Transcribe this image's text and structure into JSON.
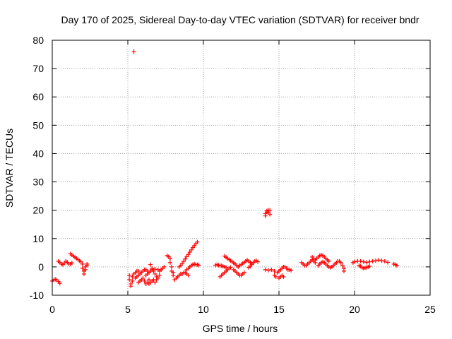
{
  "chart_data": {
    "type": "scatter",
    "title": "Day 170 of 2025, Sidereal Day-to-day VTEC variation (SDTVAR) for receiver bndr",
    "xlabel": "GPS time / hours",
    "ylabel": "SDTVAR / TECUs",
    "xlim": [
      0,
      25
    ],
    "ylim": [
      -10,
      80
    ],
    "xticks": [
      0,
      5,
      10,
      15,
      20,
      25
    ],
    "yticks": [
      -10,
      0,
      10,
      20,
      30,
      40,
      50,
      60,
      70,
      80
    ],
    "grid": true,
    "marker": "+",
    "series_color": "#ff0000",
    "series": [
      {
        "name": "SDTVAR",
        "points": [
          [
            0.0,
            -5.0
          ],
          [
            0.1,
            -4.6
          ],
          [
            0.2,
            -4.4
          ],
          [
            0.3,
            -4.6
          ],
          [
            0.4,
            -5.2
          ],
          [
            0.5,
            -5.8
          ],
          [
            0.4,
            2.0
          ],
          [
            0.5,
            1.6
          ],
          [
            0.6,
            1.0
          ],
          [
            0.7,
            0.8
          ],
          [
            0.8,
            1.4
          ],
          [
            0.9,
            2.0
          ],
          [
            1.0,
            1.6
          ],
          [
            1.1,
            1.0
          ],
          [
            1.2,
            1.0
          ],
          [
            1.3,
            1.4
          ],
          [
            1.2,
            4.6
          ],
          [
            1.3,
            4.2
          ],
          [
            1.4,
            3.8
          ],
          [
            1.5,
            3.4
          ],
          [
            1.6,
            3.0
          ],
          [
            1.7,
            2.6
          ],
          [
            1.8,
            2.2
          ],
          [
            1.9,
            1.8
          ],
          [
            2.0,
            1.0
          ],
          [
            2.0,
            -0.5
          ],
          [
            2.1,
            -1.5
          ],
          [
            2.1,
            -2.5
          ],
          [
            2.2,
            -1.0
          ],
          [
            2.2,
            0.0
          ],
          [
            2.3,
            0.5
          ],
          [
            2.3,
            1.0
          ],
          [
            5.4,
            76.0
          ],
          [
            5.1,
            -3.0
          ],
          [
            5.1,
            -4.5
          ],
          [
            5.2,
            -6.0
          ],
          [
            5.2,
            -6.8
          ],
          [
            5.3,
            -5.0
          ],
          [
            5.3,
            -3.5
          ],
          [
            5.4,
            -2.5
          ],
          [
            5.5,
            -2.0
          ],
          [
            5.6,
            -1.5
          ],
          [
            5.7,
            -1.5
          ],
          [
            5.5,
            -4.0
          ],
          [
            5.6,
            -3.5
          ],
          [
            5.7,
            -3.0
          ],
          [
            5.8,
            -2.5
          ],
          [
            5.9,
            -2.0
          ],
          [
            6.0,
            -1.5
          ],
          [
            6.1,
            -1.0
          ],
          [
            6.2,
            -1.0
          ],
          [
            6.3,
            -1.5
          ],
          [
            5.7,
            -5.5
          ],
          [
            5.8,
            -5.0
          ],
          [
            5.9,
            -4.5
          ],
          [
            6.0,
            -4.0
          ],
          [
            6.1,
            -5.0
          ],
          [
            6.2,
            -6.0
          ],
          [
            6.3,
            -5.5
          ],
          [
            6.4,
            -4.5
          ],
          [
            6.2,
            -3.0
          ],
          [
            6.3,
            -2.5
          ],
          [
            6.4,
            -2.0
          ],
          [
            6.5,
            -1.5
          ],
          [
            6.6,
            -1.0
          ],
          [
            6.7,
            -1.5
          ],
          [
            6.8,
            -2.5
          ],
          [
            6.9,
            -3.5
          ],
          [
            6.4,
            -6.0
          ],
          [
            6.5,
            -5.5
          ],
          [
            6.6,
            -5.0
          ],
          [
            6.7,
            -4.5
          ],
          [
            6.8,
            -5.5
          ],
          [
            6.9,
            -4.5
          ],
          [
            7.0,
            -4.0
          ],
          [
            7.1,
            -3.0
          ],
          [
            6.5,
            0.8
          ],
          [
            6.6,
            -0.5
          ],
          [
            6.8,
            -0.8
          ],
          [
            7.0,
            -1.0
          ],
          [
            7.1,
            -1.5
          ],
          [
            7.2,
            -1.0
          ],
          [
            7.3,
            -0.5
          ],
          [
            7.4,
            0.0
          ],
          [
            7.6,
            4.0
          ],
          [
            7.7,
            3.6
          ],
          [
            7.8,
            3.0
          ],
          [
            7.8,
            1.5
          ],
          [
            7.9,
            0.0
          ],
          [
            7.9,
            -1.5
          ],
          [
            8.0,
            -2.0
          ],
          [
            8.0,
            -3.0
          ],
          [
            8.1,
            -4.5
          ],
          [
            8.2,
            -4.0
          ],
          [
            8.3,
            -3.5
          ],
          [
            8.4,
            -3.0
          ],
          [
            8.5,
            -2.5
          ],
          [
            8.6,
            -2.5
          ],
          [
            8.7,
            -2.0
          ],
          [
            8.8,
            -2.0
          ],
          [
            8.9,
            -2.5
          ],
          [
            9.0,
            -3.0
          ],
          [
            8.4,
            0.0
          ],
          [
            8.5,
            0.6
          ],
          [
            8.6,
            1.2
          ],
          [
            8.7,
            2.0
          ],
          [
            8.8,
            2.8
          ],
          [
            8.9,
            3.6
          ],
          [
            9.0,
            4.4
          ],
          [
            9.1,
            5.2
          ],
          [
            9.2,
            6.0
          ],
          [
            9.3,
            6.8
          ],
          [
            9.4,
            7.5
          ],
          [
            9.5,
            8.2
          ],
          [
            9.6,
            8.8
          ],
          [
            8.9,
            -1.0
          ],
          [
            9.0,
            -0.5
          ],
          [
            9.1,
            0.0
          ],
          [
            9.2,
            0.5
          ],
          [
            9.3,
            0.8
          ],
          [
            9.4,
            1.0
          ],
          [
            9.5,
            0.8
          ],
          [
            9.6,
            0.8
          ],
          [
            9.7,
            0.6
          ],
          [
            10.8,
            0.6
          ],
          [
            10.9,
            0.8
          ],
          [
            11.0,
            0.6
          ],
          [
            11.1,
            0.4
          ],
          [
            11.2,
            0.4
          ],
          [
            11.3,
            0.2
          ],
          [
            11.4,
            0.0
          ],
          [
            11.5,
            -0.2
          ],
          [
            11.1,
            -3.5
          ],
          [
            11.2,
            -3.0
          ],
          [
            11.3,
            -2.5
          ],
          [
            11.4,
            -2.0
          ],
          [
            11.5,
            -1.5
          ],
          [
            11.6,
            -1.0
          ],
          [
            11.7,
            -0.5
          ],
          [
            11.8,
            -0.2
          ],
          [
            11.4,
            3.8
          ],
          [
            11.5,
            3.4
          ],
          [
            11.6,
            3.0
          ],
          [
            11.7,
            2.6
          ],
          [
            11.8,
            2.2
          ],
          [
            11.9,
            1.8
          ],
          [
            12.0,
            1.4
          ],
          [
            12.1,
            1.0
          ],
          [
            12.2,
            0.5
          ],
          [
            12.3,
            0.0
          ],
          [
            12.0,
            -1.0
          ],
          [
            12.1,
            -1.5
          ],
          [
            12.2,
            -2.0
          ],
          [
            12.3,
            -2.5
          ],
          [
            12.4,
            -3.0
          ],
          [
            12.5,
            -3.0
          ],
          [
            12.6,
            -2.5
          ],
          [
            12.7,
            -2.0
          ],
          [
            12.4,
            0.5
          ],
          [
            12.5,
            0.8
          ],
          [
            12.6,
            1.2
          ],
          [
            12.7,
            1.6
          ],
          [
            12.8,
            2.0
          ],
          [
            12.9,
            2.4
          ],
          [
            13.0,
            2.0
          ],
          [
            13.1,
            1.6
          ],
          [
            13.2,
            1.2
          ],
          [
            13.0,
            -0.2
          ],
          [
            13.1,
            0.2
          ],
          [
            13.2,
            0.8
          ],
          [
            13.3,
            1.5
          ],
          [
            13.4,
            2.0
          ],
          [
            13.5,
            2.2
          ],
          [
            13.6,
            1.8
          ],
          [
            14.1,
            18.0
          ],
          [
            14.1,
            18.8
          ],
          [
            14.2,
            19.4
          ],
          [
            14.2,
            19.8
          ],
          [
            14.3,
            20.0
          ],
          [
            14.3,
            19.2
          ],
          [
            14.4,
            18.5
          ],
          [
            14.4,
            20.0
          ],
          [
            14.1,
            -1.0
          ],
          [
            14.3,
            -1.2
          ],
          [
            14.5,
            -1.0
          ],
          [
            14.7,
            -1.5
          ],
          [
            14.9,
            -2.0
          ],
          [
            15.0,
            -1.5
          ],
          [
            15.1,
            -1.0
          ],
          [
            15.2,
            -0.5
          ],
          [
            15.3,
            0.0
          ],
          [
            15.4,
            0.0
          ],
          [
            15.5,
            -0.5
          ],
          [
            15.6,
            -1.0
          ],
          [
            15.7,
            -1.0
          ],
          [
            15.8,
            -1.2
          ],
          [
            14.7,
            -3.0
          ],
          [
            14.8,
            -3.5
          ],
          [
            15.0,
            -4.0
          ],
          [
            15.1,
            -3.5
          ],
          [
            15.2,
            -3.0
          ],
          [
            15.3,
            -3.5
          ],
          [
            16.5,
            1.5
          ],
          [
            16.6,
            1.0
          ],
          [
            16.7,
            0.5
          ],
          [
            16.8,
            0.5
          ],
          [
            16.9,
            1.0
          ],
          [
            17.0,
            1.5
          ],
          [
            17.1,
            2.0
          ],
          [
            17.2,
            2.5
          ],
          [
            17.3,
            2.0
          ],
          [
            17.4,
            1.5
          ],
          [
            17.2,
            3.5
          ],
          [
            17.3,
            3.0
          ],
          [
            17.4,
            2.5
          ],
          [
            17.5,
            3.0
          ],
          [
            17.6,
            3.5
          ],
          [
            17.7,
            4.0
          ],
          [
            17.8,
            4.2
          ],
          [
            17.9,
            4.0
          ],
          [
            18.0,
            3.5
          ],
          [
            18.1,
            3.0
          ],
          [
            18.2,
            2.5
          ],
          [
            18.3,
            2.0
          ],
          [
            17.6,
            0.5
          ],
          [
            17.7,
            1.0
          ],
          [
            17.8,
            1.5
          ],
          [
            17.9,
            1.8
          ],
          [
            18.0,
            1.5
          ],
          [
            18.1,
            1.0
          ],
          [
            18.2,
            0.5
          ],
          [
            18.3,
            0.0
          ],
          [
            18.4,
            -0.2
          ],
          [
            18.5,
            0.0
          ],
          [
            18.6,
            0.5
          ],
          [
            18.7,
            1.0
          ],
          [
            18.8,
            1.5
          ],
          [
            18.9,
            2.0
          ],
          [
            19.0,
            2.0
          ],
          [
            19.1,
            1.5
          ],
          [
            19.2,
            0.5
          ],
          [
            19.3,
            -0.5
          ],
          [
            19.3,
            -1.5
          ],
          [
            19.9,
            1.5
          ],
          [
            20.0,
            1.8
          ],
          [
            20.2,
            2.0
          ],
          [
            20.4,
            2.0
          ],
          [
            20.6,
            1.8
          ],
          [
            20.8,
            1.6
          ],
          [
            21.0,
            1.8
          ],
          [
            21.2,
            2.0
          ],
          [
            21.4,
            2.2
          ],
          [
            21.6,
            2.4
          ],
          [
            21.8,
            2.2
          ],
          [
            22.0,
            2.0
          ],
          [
            22.2,
            1.6
          ],
          [
            20.3,
            0.5
          ],
          [
            20.4,
            0.2
          ],
          [
            20.5,
            -0.2
          ],
          [
            20.6,
            -0.5
          ],
          [
            20.7,
            -0.3
          ],
          [
            20.8,
            -0.2
          ],
          [
            20.9,
            0.0
          ],
          [
            21.0,
            0.2
          ],
          [
            22.6,
            1.0
          ],
          [
            22.7,
            0.8
          ],
          [
            22.8,
            0.5
          ]
        ]
      }
    ]
  }
}
